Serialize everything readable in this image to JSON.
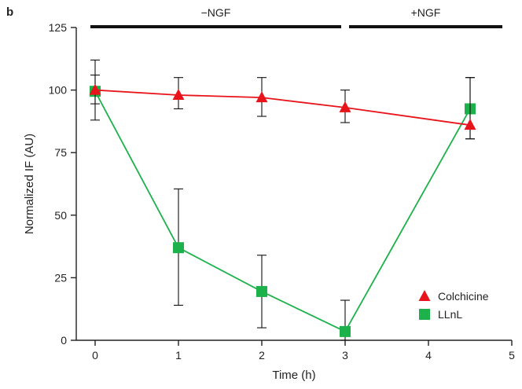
{
  "panel_label": "b",
  "chart_data": {
    "type": "line",
    "xlabel": "Time (h)",
    "ylabel": "Normalized IF (AU)",
    "xlim": [
      0,
      5
    ],
    "ylim": [
      0,
      125
    ],
    "x_ticks": [
      0,
      1,
      2,
      3,
      4,
      5
    ],
    "y_ticks": [
      0,
      25,
      50,
      75,
      100,
      125
    ],
    "grid": false,
    "legend_position": "bottom-right",
    "phase_bars": [
      {
        "label": "−NGF",
        "x_start": 0,
        "x_end": 3
      },
      {
        "label": "+NGF",
        "x_start": 3,
        "x_end": 5
      }
    ],
    "series": [
      {
        "name": "Colchicine",
        "marker": "triangle",
        "color": "#e8141b",
        "x": [
          0,
          1,
          2,
          3,
          4.5
        ],
        "y": [
          100,
          98,
          97,
          93,
          86
        ],
        "err_low": [
          88,
          92.5,
          89.5,
          87,
          80.5
        ],
        "err_high": [
          112,
          105,
          105,
          100,
          105
        ]
      },
      {
        "name": "LLnL",
        "marker": "square",
        "color": "#1db14b",
        "x": [
          0,
          1,
          2,
          3,
          4.5
        ],
        "y": [
          99.5,
          37,
          19.5,
          3.5,
          92.5
        ],
        "err_low": [
          94.5,
          14,
          5,
          0,
          80.5
        ],
        "err_high": [
          106,
          60.5,
          34,
          16,
          105
        ]
      }
    ]
  }
}
